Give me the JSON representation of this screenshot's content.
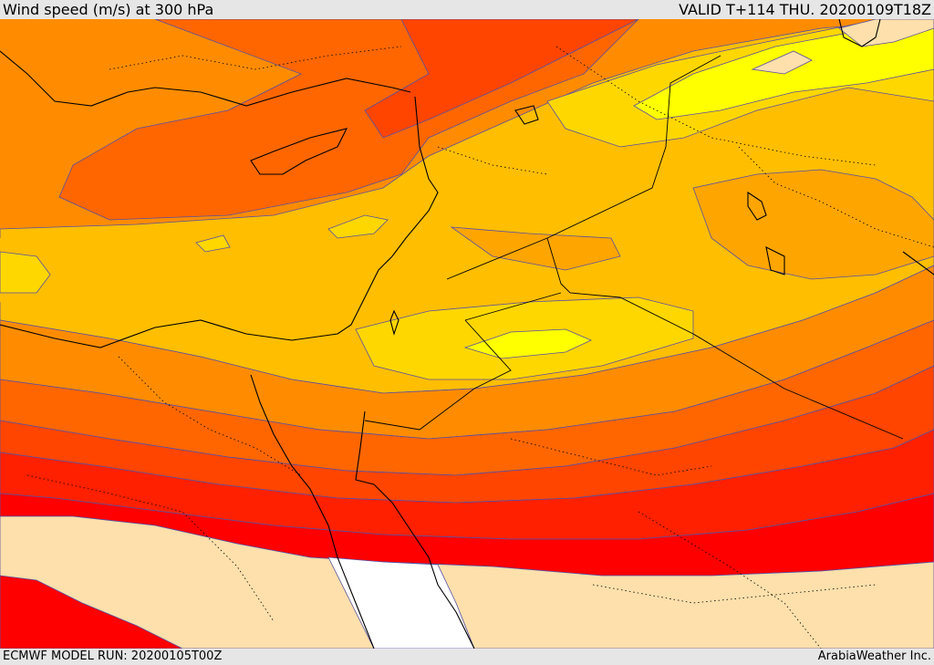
{
  "header": {
    "title": "Wind speed (m/s) at 300 hPa",
    "valid": "VALID T+114 THU. 20200109T18Z"
  },
  "footer": {
    "model_run": "ECMWF MODEL RUN: 20200105T00Z",
    "credit": "ArabiaWeather Inc."
  },
  "map": {
    "variable": "wind speed",
    "level_hPa": 300,
    "units": "m/s",
    "colors": {
      "background_light": "#fde0ab",
      "calm_white": "#ffffff",
      "yellow": "#ffff00",
      "gold": "#ffd700",
      "amber": "#ffbe00",
      "orange_light": "#ffa500",
      "orange": "#ff8c00",
      "orange_dark": "#ff6600",
      "red_orange": "#ff4500",
      "red_dark": "#ff2000",
      "red": "#ff0000",
      "contour_line": "#5a4fa0",
      "coastline": "#000000"
    }
  }
}
